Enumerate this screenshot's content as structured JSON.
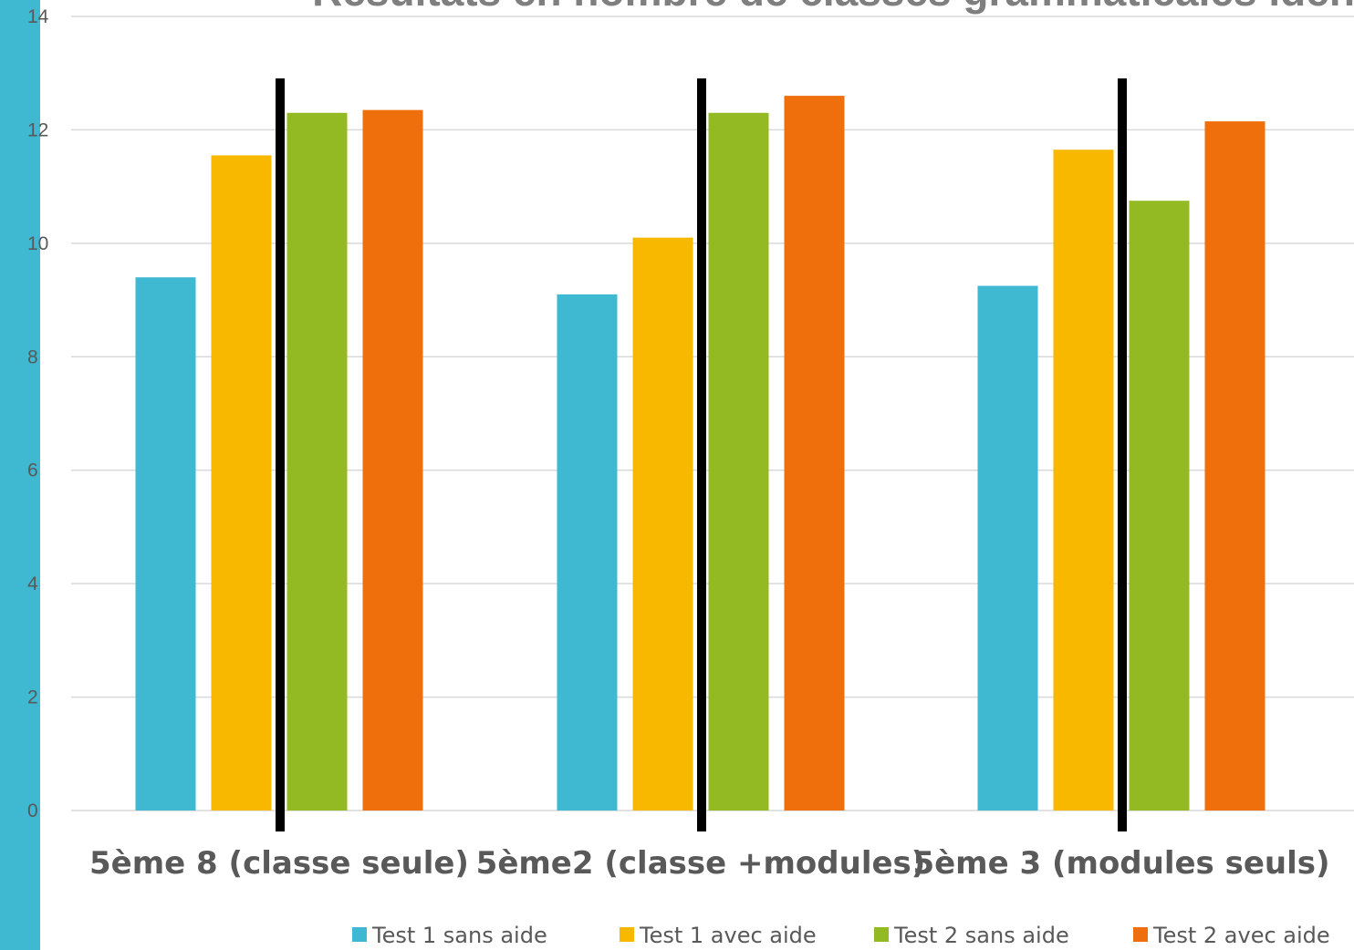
{
  "chart_data": {
    "type": "bar",
    "title": "Résultats en nombre de classes grammaticales identifiées",
    "xlabel": "",
    "ylabel": "",
    "ylim": [
      0,
      14
    ],
    "yticks": [
      0,
      2,
      4,
      6,
      8,
      10,
      12,
      14
    ],
    "grid": true,
    "legend_position": "bottom",
    "categories": [
      "5ème 8 (classe seule)",
      "5ème2 (classe +modules)",
      "5ème 3 (modules seuls)"
    ],
    "series": [
      {
        "name": "Test 1 sans aide",
        "color": "#3fb8d2",
        "values": [
          9.4,
          9.1,
          9.25
        ]
      },
      {
        "name": "Test 1 avec aide",
        "color": "#f9b800",
        "values": [
          11.55,
          10.1,
          11.65
        ]
      },
      {
        "name": "Test 2 sans aide",
        "color": "#93ba22",
        "values": [
          12.3,
          12.3,
          10.75
        ]
      },
      {
        "name": "Test 2 avec aide",
        "color": "#ee6f0c",
        "values": [
          12.35,
          12.6,
          12.15
        ]
      }
    ]
  }
}
